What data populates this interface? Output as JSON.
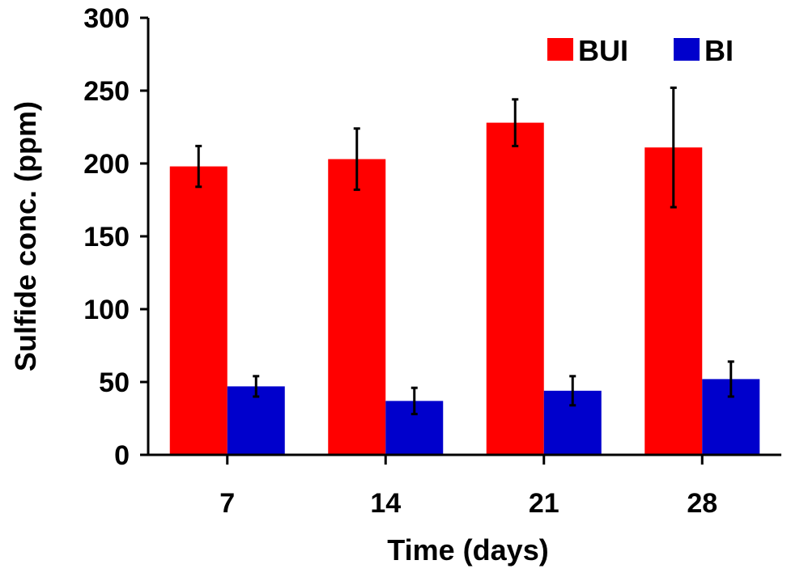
{
  "chart_data": {
    "type": "bar",
    "title": "",
    "xlabel": "Time (days)",
    "ylabel": "Sulfide conc. (ppm)",
    "categories": [
      "7",
      "14",
      "21",
      "28"
    ],
    "ylim": [
      0,
      300
    ],
    "yticks": [
      0,
      50,
      100,
      150,
      200,
      250,
      300
    ],
    "grid": false,
    "legend_position": "top-right",
    "series": [
      {
        "name": "BUI",
        "color": "#ff0000",
        "values": [
          198,
          203,
          228,
          211
        ],
        "errors": [
          14,
          21,
          16,
          41
        ]
      },
      {
        "name": "BI",
        "color": "#0000cc",
        "values": [
          47,
          37,
          44,
          52
        ],
        "errors": [
          7,
          9,
          10,
          12
        ]
      }
    ]
  }
}
